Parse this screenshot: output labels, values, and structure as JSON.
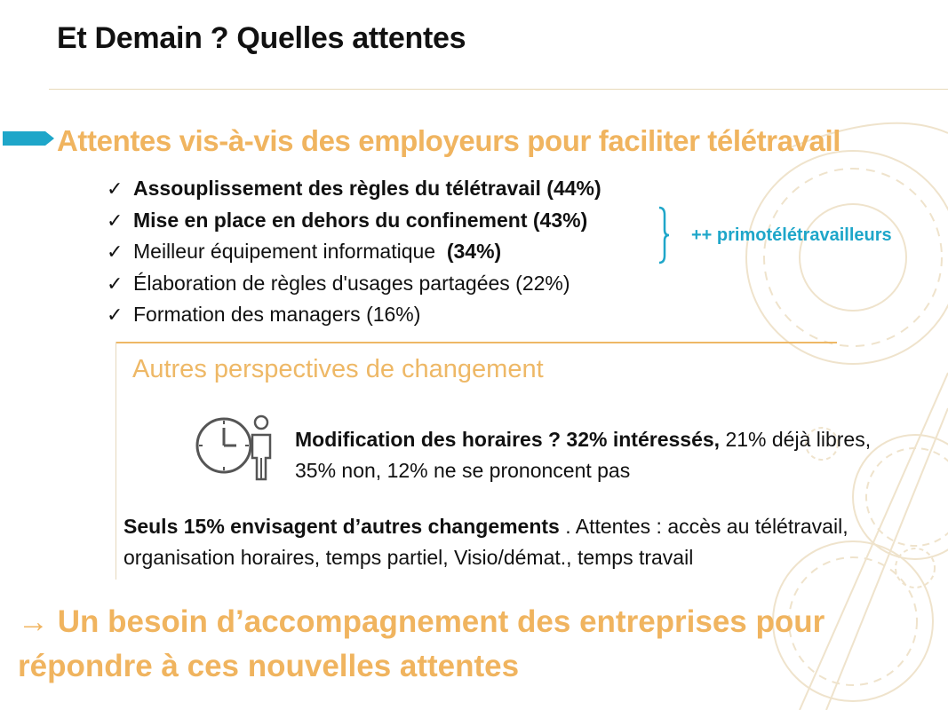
{
  "slide": {
    "title": "Et Demain ? Quelles attentes",
    "section_heading": "Attentes vis-à-vis des employeurs pour faciliter télétravail",
    "checklist": [
      {
        "bold": "Assouplissement des règles du télétravail (44%)",
        "normal": "",
        "bold_suffix": ""
      },
      {
        "bold": "Mise en place en dehors du confinement (43%)",
        "normal": "",
        "bold_suffix": ""
      },
      {
        "bold": "",
        "normal": "Meilleur équipement informatique  ",
        "bold_suffix": "(34%)"
      },
      {
        "bold": "",
        "normal": "Élaboration de règles d'usages partagées (22%)",
        "bold_suffix": ""
      },
      {
        "bold": "",
        "normal": "Formation des managers (16%)",
        "bold_suffix": ""
      }
    ],
    "brace_label": "++ primotélétravailleurs",
    "sub_heading": "Autres perspectives de changement",
    "schedule": {
      "bold": "Modification des horaires ? 32% intéressés,",
      "normal": " 21% déjà libres, 35% non, 12% ne se prononcent pas"
    },
    "changes": {
      "bold": "Seuls 15% envisagent d’autres changements",
      "normal": " . Attentes : accès au télétravail, organisation horaires, temps partiel, Visio/démat., temps travail"
    },
    "conclusion": "→ Un besoin d’accompagnement des entreprises pour répondre à ces nouvelles attentes",
    "icons": {
      "check": "checkmark-icon",
      "arrow": "arrow-marker-icon",
      "clock": "clock-person-icon"
    },
    "colors": {
      "accent_orange": "#f0b45f",
      "accent_blue": "#1ea6c9",
      "rule": "#eeb866"
    }
  }
}
